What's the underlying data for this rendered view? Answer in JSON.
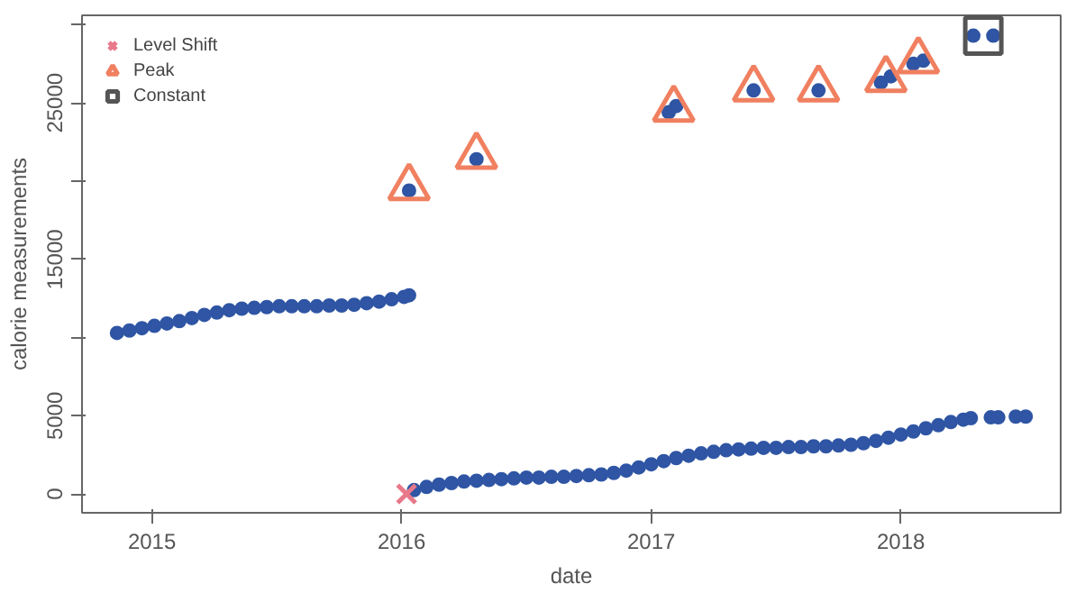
{
  "chart_data": {
    "type": "scatter",
    "xlabel": "date",
    "ylabel": "calorie measurements",
    "xlim": [
      2014.72,
      2018.64
    ],
    "ylim": [
      -1200,
      30600
    ],
    "xticks": [
      2015,
      2016,
      2017,
      2018
    ],
    "yticks": [
      0,
      5000,
      {
        "value": 10000,
        "label": null
      },
      15000,
      {
        "value": 20000,
        "label": null
      },
      25000,
      {
        "value": 30000,
        "label": null
      }
    ],
    "grid": false,
    "legend": "top left",
    "series": [
      {
        "color": "#2f55a4",
        "marker": "circle",
        "x": [
          2014.86,
          2014.91,
          2014.96,
          2015.01,
          2015.06,
          2015.11,
          2015.16,
          2015.21,
          2015.26,
          2015.31,
          2015.36,
          2015.41,
          2015.46,
          2015.51,
          2015.56,
          2015.61,
          2015.66,
          2015.71,
          2015.76,
          2015.81,
          2015.86,
          2015.91,
          2015.96,
          2016.01,
          2016.03,
          2016.05,
          2016.1,
          2016.15,
          2016.2,
          2016.25,
          2016.3,
          2016.35,
          2016.4,
          2016.45,
          2016.5,
          2016.55,
          2016.6,
          2016.65,
          2016.7,
          2016.75,
          2016.8,
          2016.85,
          2016.9,
          2016.95,
          2017.0,
          2017.05,
          2017.1,
          2017.15,
          2017.2,
          2017.25,
          2017.3,
          2017.35,
          2017.4,
          2017.45,
          2017.5,
          2017.55,
          2017.6,
          2017.65,
          2017.7,
          2017.75,
          2017.8,
          2017.85,
          2017.9,
          2017.95,
          2018.0,
          2018.05,
          2018.1,
          2018.15,
          2018.2,
          2018.25,
          2018.28,
          2018.36,
          2018.39,
          2018.46,
          2018.5
        ],
        "values": [
          10300,
          10450,
          10600,
          10750,
          10900,
          11050,
          11250,
          11450,
          11600,
          11750,
          11850,
          11900,
          11950,
          12000,
          12000,
          12000,
          12000,
          12050,
          12050,
          12100,
          12200,
          12300,
          12450,
          12600,
          12700,
          250,
          450,
          600,
          700,
          800,
          850,
          900,
          950,
          1000,
          1050,
          1050,
          1100,
          1100,
          1150,
          1200,
          1250,
          1350,
          1500,
          1700,
          1900,
          2100,
          2300,
          2450,
          2600,
          2700,
          2800,
          2850,
          2900,
          2950,
          2950,
          3000,
          3000,
          3050,
          3050,
          3100,
          3150,
          3250,
          3400,
          3600,
          3800,
          4000,
          4200,
          4400,
          4600,
          4750,
          4850,
          4900,
          4900,
          4950,
          4950
        ]
      },
      {
        "color": "#2f55a4",
        "marker": "circle",
        "x": [
          2016.03,
          2016.3,
          2017.07,
          2017.1,
          2017.41,
          2017.67,
          2017.92,
          2017.96,
          2018.05,
          2018.09,
          2018.29,
          2018.37
        ],
        "values": [
          19400,
          21400,
          24400,
          24800,
          25800,
          25800,
          26300,
          26700,
          27500,
          27700,
          29300,
          29300
        ]
      },
      {
        "name": "Level Shift",
        "color": "#e8788a",
        "marker": "cross",
        "x": [
          2016.02
        ],
        "values": [
          0
        ]
      },
      {
        "name": "Peak",
        "color": "#f08060",
        "marker": "triangle",
        "x": [
          2016.03,
          2016.3,
          2017.09,
          2017.41,
          2017.67,
          2017.94,
          2018.07
        ],
        "values": [
          19600,
          21600,
          24600,
          25900,
          25900,
          26500,
          27700
        ]
      },
      {
        "name": "Constant",
        "color": "#555555",
        "marker": "square",
        "x": [
          2018.33
        ],
        "values": [
          29300
        ]
      }
    ]
  }
}
